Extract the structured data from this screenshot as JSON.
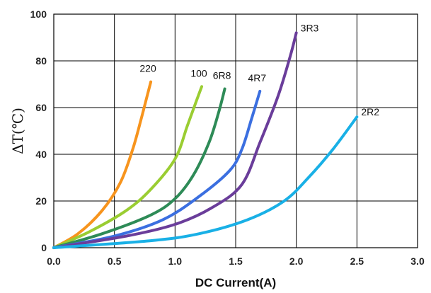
{
  "chart_data": {
    "type": "line",
    "xlabel": "DC Current(A)",
    "ylabel": "ΔT(℃)",
    "xlim": [
      0,
      3.0
    ],
    "ylim": [
      0,
      100
    ],
    "x_ticks": [
      "0.0",
      "0.5",
      "1.0",
      "1.5",
      "2.0",
      "2.5",
      "3.0"
    ],
    "y_ticks": [
      "0",
      "20",
      "40",
      "60",
      "80",
      "100"
    ],
    "grid": true,
    "series": [
      {
        "name": "220",
        "color": "#f7941d",
        "label_anchor": "end",
        "points": [
          [
            0,
            0
          ],
          [
            0.2,
            6
          ],
          [
            0.4,
            16
          ],
          [
            0.55,
            28
          ],
          [
            0.65,
            42
          ],
          [
            0.72,
            55
          ],
          [
            0.77,
            65
          ],
          [
            0.8,
            71
          ]
        ]
      },
      {
        "name": "100",
        "color": "#9acd32",
        "label_anchor": "end",
        "points": [
          [
            0,
            0
          ],
          [
            0.3,
            7
          ],
          [
            0.6,
            16
          ],
          [
            0.8,
            25
          ],
          [
            1.0,
            38
          ],
          [
            1.1,
            52
          ],
          [
            1.17,
            62
          ],
          [
            1.22,
            69
          ]
        ]
      },
      {
        "name": "6R8",
        "color": "#2e8b57",
        "label_anchor": "end",
        "points": [
          [
            0,
            0
          ],
          [
            0.4,
            6
          ],
          [
            0.8,
            14
          ],
          [
            1.0,
            21
          ],
          [
            1.15,
            31
          ],
          [
            1.28,
            45
          ],
          [
            1.36,
            58
          ],
          [
            1.41,
            68
          ]
        ]
      },
      {
        "name": "4R7",
        "color": "#3b6fe0",
        "label_anchor": "end",
        "points": [
          [
            0,
            0
          ],
          [
            0.5,
            5
          ],
          [
            0.9,
            12
          ],
          [
            1.2,
            22
          ],
          [
            1.45,
            33
          ],
          [
            1.55,
            42
          ],
          [
            1.63,
            55
          ],
          [
            1.7,
            67
          ]
        ]
      },
      {
        "name": "3R3",
        "color": "#6a3d9a",
        "label_anchor": "start",
        "points": [
          [
            0,
            0
          ],
          [
            0.6,
            5
          ],
          [
            1.0,
            10
          ],
          [
            1.3,
            17
          ],
          [
            1.55,
            27
          ],
          [
            1.7,
            45
          ],
          [
            1.85,
            65
          ],
          [
            1.95,
            82
          ],
          [
            2.0,
            92
          ]
        ]
      },
      {
        "name": "2R2",
        "color": "#19b0e6",
        "label_anchor": "start",
        "points": [
          [
            0,
            0
          ],
          [
            0.8,
            3
          ],
          [
            1.2,
            6
          ],
          [
            1.6,
            12
          ],
          [
            1.9,
            20
          ],
          [
            2.1,
            30
          ],
          [
            2.3,
            42
          ],
          [
            2.5,
            56
          ]
        ]
      }
    ]
  }
}
